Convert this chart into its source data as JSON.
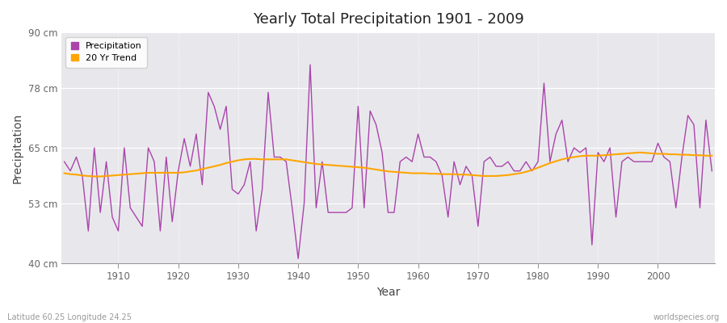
{
  "title": "Yearly Total Precipitation 1901 - 2009",
  "xlabel": "Year",
  "ylabel": "Precipitation",
  "bottom_left_label": "Latitude 60.25 Longitude 24.25",
  "bottom_right_label": "worldspecies.org",
  "ylim": [
    40,
    90
  ],
  "yticks": [
    40,
    53,
    65,
    78,
    90
  ],
  "ytick_labels": [
    "40 cm",
    "53 cm",
    "65 cm",
    "78 cm",
    "90 cm"
  ],
  "xlim": [
    1901,
    2009
  ],
  "xticks": [
    1910,
    1920,
    1930,
    1940,
    1950,
    1960,
    1970,
    1980,
    1990,
    2000
  ],
  "precip_color": "#AA44AA",
  "trend_color": "#FFA500",
  "fig_bg_color": "#FFFFFF",
  "plot_bg_color": "#E8E8EC",
  "grid_color": "#FFFFFF",
  "years": [
    1901,
    1902,
    1903,
    1904,
    1905,
    1906,
    1907,
    1908,
    1909,
    1910,
    1911,
    1912,
    1913,
    1914,
    1915,
    1916,
    1917,
    1918,
    1919,
    1920,
    1921,
    1922,
    1923,
    1924,
    1925,
    1926,
    1927,
    1928,
    1929,
    1930,
    1931,
    1932,
    1933,
    1934,
    1935,
    1936,
    1937,
    1938,
    1939,
    1940,
    1941,
    1942,
    1943,
    1944,
    1945,
    1946,
    1947,
    1948,
    1949,
    1950,
    1951,
    1952,
    1953,
    1954,
    1955,
    1956,
    1957,
    1958,
    1959,
    1960,
    1961,
    1962,
    1963,
    1964,
    1965,
    1966,
    1967,
    1968,
    1969,
    1970,
    1971,
    1972,
    1973,
    1974,
    1975,
    1976,
    1977,
    1978,
    1979,
    1980,
    1981,
    1982,
    1983,
    1984,
    1985,
    1986,
    1987,
    1988,
    1989,
    1990,
    1991,
    1992,
    1993,
    1994,
    1995,
    1996,
    1997,
    1998,
    1999,
    2000,
    2001,
    2002,
    2003,
    2004,
    2005,
    2006,
    2007,
    2008,
    2009
  ],
  "precip": [
    62,
    60,
    63,
    59,
    47,
    65,
    51,
    62,
    50,
    47,
    65,
    52,
    50,
    48,
    65,
    62,
    47,
    63,
    49,
    60,
    67,
    61,
    68,
    57,
    77,
    74,
    69,
    74,
    56,
    55,
    57,
    62,
    47,
    56,
    77,
    63,
    63,
    62,
    52,
    41,
    53,
    83,
    52,
    62,
    51,
    51,
    51,
    51,
    52,
    74,
    52,
    73,
    70,
    64,
    51,
    51,
    62,
    63,
    62,
    68,
    63,
    63,
    62,
    59,
    50,
    62,
    57,
    61,
    59,
    48,
    62,
    63,
    61,
    61,
    62,
    60,
    60,
    62,
    60,
    62,
    79,
    62,
    68,
    71,
    62,
    65,
    64,
    65,
    44,
    64,
    62,
    65,
    50,
    62,
    63,
    62,
    62,
    62,
    62,
    66,
    63,
    62,
    52,
    63,
    72,
    70,
    52,
    71,
    60
  ],
  "trend": [
    59.5,
    59.3,
    59.2,
    59.0,
    58.9,
    58.8,
    58.8,
    58.9,
    59.0,
    59.1,
    59.2,
    59.3,
    59.4,
    59.5,
    59.6,
    59.6,
    59.6,
    59.6,
    59.6,
    59.6,
    59.7,
    59.9,
    60.1,
    60.4,
    60.7,
    61.0,
    61.3,
    61.7,
    62.0,
    62.3,
    62.5,
    62.6,
    62.6,
    62.5,
    62.5,
    62.5,
    62.5,
    62.5,
    62.3,
    62.1,
    61.9,
    61.7,
    61.5,
    61.4,
    61.3,
    61.2,
    61.1,
    61.0,
    60.9,
    60.8,
    60.7,
    60.5,
    60.3,
    60.1,
    59.9,
    59.8,
    59.7,
    59.6,
    59.5,
    59.5,
    59.5,
    59.4,
    59.4,
    59.3,
    59.3,
    59.3,
    59.2,
    59.2,
    59.1,
    59.0,
    58.9,
    58.9,
    58.9,
    59.0,
    59.1,
    59.3,
    59.5,
    59.8,
    60.2,
    60.7,
    61.2,
    61.7,
    62.1,
    62.5,
    62.8,
    63.0,
    63.2,
    63.3,
    63.3,
    63.3,
    63.4,
    63.5,
    63.6,
    63.7,
    63.8,
    63.9,
    64.0,
    63.9,
    63.8,
    63.7,
    63.7,
    63.6,
    63.6,
    63.5,
    63.5,
    63.4,
    63.4,
    63.3,
    63.3
  ]
}
